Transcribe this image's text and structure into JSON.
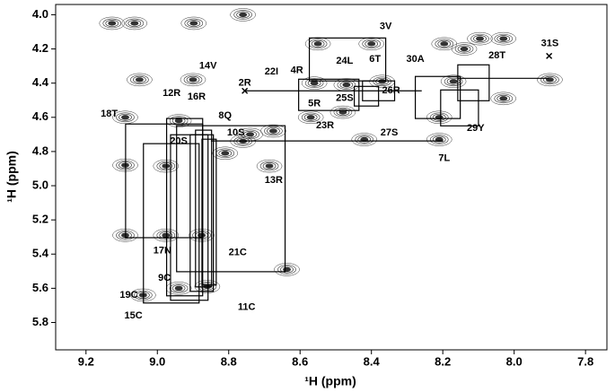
{
  "chart_data": {
    "type": "scatter",
    "x_label": "¹H (ppm)",
    "y_label": "¹H (ppm)",
    "xlim": [
      9.285,
      7.74
    ],
    "ylim": [
      3.94,
      5.96
    ],
    "xticks": [
      9.2,
      {
        "value": 9.0,
        "label": "9.0"
      },
      8.8,
      8.6,
      8.4,
      8.2,
      {
        "value": 8.0,
        "label": "8.0"
      },
      7.8
    ],
    "yticks": [
      {
        "value": 4.0,
        "label": "4.0"
      },
      4.2,
      4.4,
      4.6,
      4.8,
      {
        "value": 5.0,
        "label": "5.0"
      },
      5.2,
      5.4,
      5.6,
      5.8
    ],
    "color": "#333333",
    "peaks": {
      "x": [
        9.127,
        9.064,
        8.898,
        8.76,
        8.55,
        8.4,
        8.196,
        8.096,
        8.14,
        8.03,
        7.9,
        8.03,
        8.17,
        8.21,
        8.37,
        8.47,
        8.56,
        8.675,
        8.74,
        8.81,
        8.94,
        9.05,
        8.9,
        9.09,
        9.09,
        8.976,
        8.686,
        8.57,
        8.48,
        8.42,
        8.21,
        9.09,
        8.976,
        8.876,
        8.637,
        8.94,
        8.86,
        9.04,
        8.76
      ],
      "y": [
        4.05,
        4.05,
        4.05,
        4.0,
        4.17,
        4.17,
        4.17,
        4.14,
        4.2,
        4.14,
        4.38,
        4.49,
        4.39,
        4.6,
        4.39,
        4.41,
        4.4,
        4.68,
        4.7,
        4.81,
        4.62,
        4.38,
        4.38,
        4.6,
        4.88,
        4.885,
        4.885,
        4.6,
        4.57,
        4.73,
        4.73,
        5.29,
        5.29,
        5.29,
        5.49,
        5.6,
        5.59,
        5.64,
        4.74
      ]
    },
    "boxes": [
      [
        8.574,
        8.36,
        4.136,
        4.387
      ],
      [
        8.604,
        8.435,
        4.377,
        4.56
      ],
      [
        8.448,
        8.38,
        4.419,
        4.534
      ],
      [
        8.425,
        8.335,
        4.387,
        4.503
      ],
      [
        8.277,
        8.151,
        4.361,
        4.607
      ],
      [
        8.206,
        8.1,
        4.44,
        4.65
      ],
      [
        8.158,
        8.07,
        4.293,
        4.503
      ],
      [
        9.089,
        8.873,
        4.639,
        5.304
      ],
      [
        8.974,
        8.873,
        4.607,
        5.644
      ],
      [
        8.963,
        8.858,
        4.702,
        5.67
      ],
      [
        8.946,
        8.642,
        4.649,
        5.503
      ],
      [
        9.039,
        8.883,
        4.754,
        5.686
      ],
      [
        8.908,
        8.843,
        4.702,
        5.618
      ],
      [
        8.893,
        8.848,
        4.675,
        5.592
      ],
      [
        8.875,
        8.835,
        4.728,
        5.581
      ]
    ],
    "lines": [
      [
        8.755,
        4.445,
        8.259,
        4.445
      ],
      [
        8.158,
        4.372,
        7.902,
        4.372
      ],
      [
        8.85,
        4.738,
        8.199,
        4.738
      ]
    ],
    "crosses": {
      "x": [
        8.755,
        7.902
      ],
      "y": [
        4.445,
        4.241
      ]
    },
    "annotations": [
      {
        "text": "3V",
        "x": 8.36,
        "y": 4.07
      },
      {
        "text": "6T",
        "x": 8.39,
        "y": 4.26
      },
      {
        "text": "24L",
        "x": 8.475,
        "y": 4.27
      },
      {
        "text": "30A",
        "x": 8.277,
        "y": 4.26
      },
      {
        "text": "28T",
        "x": 8.048,
        "y": 4.24
      },
      {
        "text": "31S",
        "x": 7.9,
        "y": 4.17
      },
      {
        "text": "4R",
        "x": 8.609,
        "y": 4.325
      },
      {
        "text": "22I",
        "x": 8.68,
        "y": 4.335
      },
      {
        "text": "14V",
        "x": 8.858,
        "y": 4.3
      },
      {
        "text": "2R",
        "x": 8.755,
        "y": 4.4
      },
      {
        "text": "26R",
        "x": 8.345,
        "y": 4.445
      },
      {
        "text": "25S",
        "x": 8.475,
        "y": 4.49
      },
      {
        "text": "5R",
        "x": 8.56,
        "y": 4.52
      },
      {
        "text": "12R",
        "x": 8.96,
        "y": 4.46
      },
      {
        "text": "16R",
        "x": 8.89,
        "y": 4.48
      },
      {
        "text": "18T",
        "x": 9.135,
        "y": 4.58
      },
      {
        "text": "8Q",
        "x": 8.81,
        "y": 4.59
      },
      {
        "text": "23R",
        "x": 8.53,
        "y": 4.65
      },
      {
        "text": "27S",
        "x": 8.35,
        "y": 4.69
      },
      {
        "text": "29Y",
        "x": 8.108,
        "y": 4.665
      },
      {
        "text": "10S",
        "x": 8.78,
        "y": 4.69
      },
      {
        "text": "20S",
        "x": 8.94,
        "y": 4.74
      },
      {
        "text": "7L",
        "x": 8.196,
        "y": 4.84
      },
      {
        "text": "13R",
        "x": 8.674,
        "y": 4.97
      },
      {
        "text": "21C",
        "x": 8.775,
        "y": 5.39
      },
      {
        "text": "17N",
        "x": 8.986,
        "y": 5.38
      },
      {
        "text": "9C",
        "x": 8.98,
        "y": 5.54
      },
      {
        "text": "11C",
        "x": 8.75,
        "y": 5.71
      },
      {
        "text": "19C",
        "x": 9.08,
        "y": 5.64
      },
      {
        "text": "15C",
        "x": 9.067,
        "y": 5.76
      }
    ]
  }
}
